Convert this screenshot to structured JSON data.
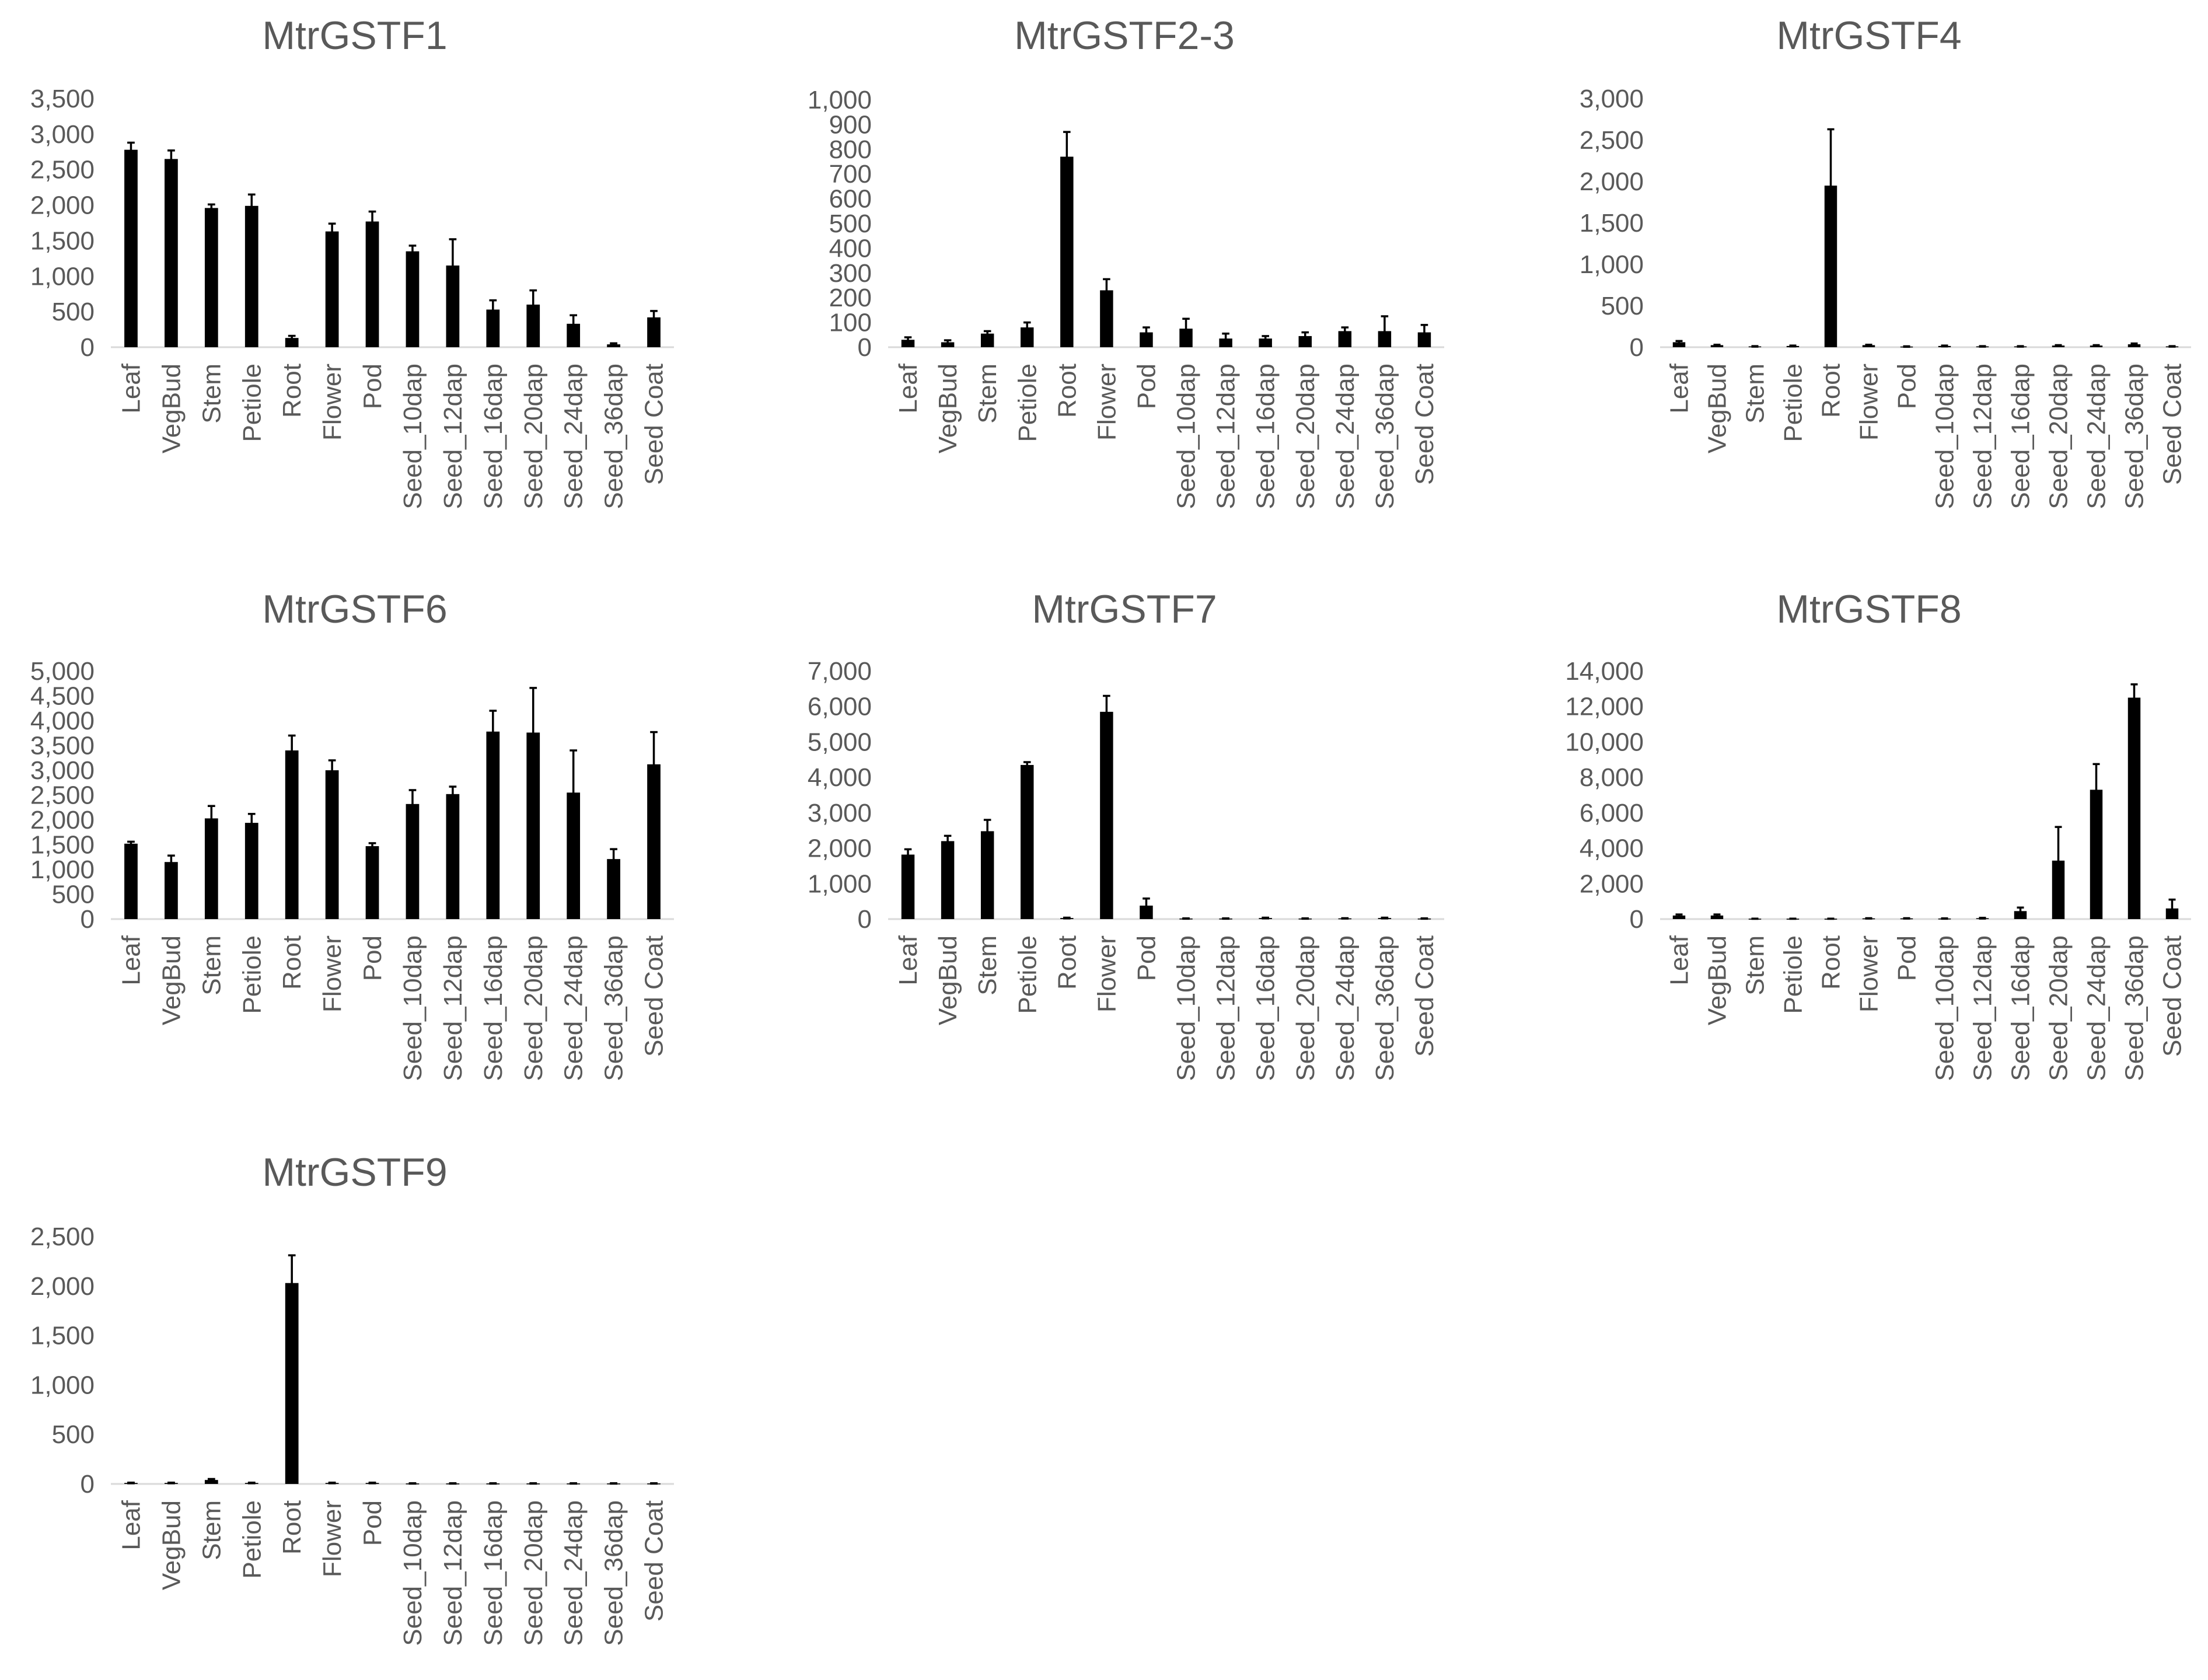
{
  "chart_data": [
    {
      "type": "bar",
      "title": "MtrGSTF1",
      "categories": [
        "Leaf",
        "VegBud",
        "Stem",
        "Petiole",
        "Root",
        "Flower",
        "Pod",
        "Seed_10dap",
        "Seed_12dap",
        "Seed_16dap",
        "Seed_20dap",
        "Seed_24dap",
        "Seed_36dap",
        "Seed Coat"
      ],
      "values": [
        2780,
        2650,
        1960,
        1990,
        130,
        1630,
        1770,
        1350,
        1150,
        530,
        600,
        330,
        40,
        420
      ],
      "errors": [
        100,
        120,
        50,
        160,
        30,
        110,
        140,
        80,
        370,
        130,
        200,
        120,
        15,
        90
      ],
      "ylim": [
        0,
        3500
      ],
      "yticks": [
        "0",
        "500",
        "1,000",
        "1,500",
        "2,000",
        "2,500",
        "3,000",
        "3,500"
      ],
      "xlabel": "",
      "ylabel": ""
    },
    {
      "type": "bar",
      "title": "MtrGSTF2-3",
      "categories": [
        "Leaf",
        "VegBud",
        "Stem",
        "Petiole",
        "Root",
        "Flower",
        "Pod",
        "Seed_10dap",
        "Seed_12dap",
        "Seed_16dap",
        "Seed_20dap",
        "Seed_24dap",
        "Seed_36dap",
        "Seed Coat"
      ],
      "values": [
        30,
        20,
        55,
        80,
        770,
        230,
        60,
        75,
        35,
        35,
        45,
        65,
        65,
        60
      ],
      "errors": [
        10,
        8,
        10,
        20,
        100,
        45,
        20,
        40,
        20,
        10,
        15,
        15,
        60,
        30
      ],
      "ylim": [
        0,
        1000
      ],
      "yticks": [
        "0",
        "100",
        "200",
        "300",
        "400",
        "500",
        "600",
        "700",
        "800",
        "900",
        "1,000"
      ],
      "xlabel": "",
      "ylabel": ""
    },
    {
      "type": "bar",
      "title": "MtrGSTF4",
      "categories": [
        "Leaf",
        "VegBud",
        "Stem",
        "Petiole",
        "Root",
        "Flower",
        "Pod",
        "Seed_10dap",
        "Seed_12dap",
        "Seed_16dap",
        "Seed_20dap",
        "Seed_24dap",
        "Seed_36dap",
        "Seed Coat"
      ],
      "values": [
        60,
        25,
        10,
        15,
        1950,
        25,
        8,
        15,
        10,
        10,
        20,
        20,
        35,
        10
      ],
      "errors": [
        15,
        5,
        3,
        5,
        680,
        5,
        3,
        5,
        3,
        3,
        5,
        5,
        10,
        3
      ],
      "ylim": [
        0,
        3000
      ],
      "yticks": [
        "0",
        "500",
        "1,000",
        "1,500",
        "2,000",
        "2,500",
        "3,000"
      ],
      "xlabel": "",
      "ylabel": ""
    },
    {
      "type": "bar",
      "title": "MtrGSTF6",
      "categories": [
        "Leaf",
        "VegBud",
        "Stem",
        "Petiole",
        "Root",
        "Flower",
        "Pod",
        "Seed_10dap",
        "Seed_12dap",
        "Seed_16dap",
        "Seed_20dap",
        "Seed_24dap",
        "Seed_36dap",
        "Seed Coat"
      ],
      "values": [
        1520,
        1150,
        2030,
        1940,
        3400,
        3000,
        1470,
        2320,
        2520,
        3780,
        3760,
        2550,
        1210,
        3120
      ],
      "errors": [
        40,
        130,
        250,
        180,
        300,
        200,
        60,
        280,
        150,
        420,
        900,
        850,
        200,
        650
      ],
      "ylim": [
        0,
        5000
      ],
      "yticks": [
        "0",
        "500",
        "1,000",
        "1,500",
        "2,000",
        "2,500",
        "3,000",
        "3,500",
        "4,000",
        "4,500",
        "5,000"
      ],
      "xlabel": "",
      "ylabel": ""
    },
    {
      "type": "bar",
      "title": "MtrGSTF7",
      "categories": [
        "Leaf",
        "VegBud",
        "Stem",
        "Petiole",
        "Root",
        "Flower",
        "Pod",
        "Seed_10dap",
        "Seed_12dap",
        "Seed_16dap",
        "Seed_20dap",
        "Seed_24dap",
        "Seed_36dap",
        "Seed Coat"
      ],
      "values": [
        1820,
        2200,
        2480,
        4350,
        30,
        5850,
        380,
        15,
        15,
        30,
        15,
        20,
        30,
        15
      ],
      "errors": [
        150,
        150,
        320,
        80,
        10,
        450,
        200,
        5,
        5,
        10,
        5,
        5,
        10,
        5
      ],
      "ylim": [
        0,
        7000
      ],
      "yticks": [
        "0",
        "1,000",
        "2,000",
        "3,000",
        "4,000",
        "5,000",
        "6,000",
        "7,000"
      ],
      "xlabel": "",
      "ylabel": ""
    },
    {
      "type": "bar",
      "title": "MtrGSTF8",
      "categories": [
        "Leaf",
        "VegBud",
        "Stem",
        "Petiole",
        "Root",
        "Flower",
        "Pod",
        "Seed_10dap",
        "Seed_12dap",
        "Seed_16dap",
        "Seed_20dap",
        "Seed_24dap",
        "Seed_36dap",
        "Seed Coat"
      ],
      "values": [
        200,
        200,
        20,
        20,
        20,
        40,
        40,
        30,
        50,
        450,
        3300,
        7300,
        12500,
        600
      ],
      "errors": [
        60,
        60,
        5,
        5,
        5,
        10,
        10,
        10,
        20,
        200,
        1900,
        1450,
        750,
        500
      ],
      "ylim": [
        0,
        14000
      ],
      "yticks": [
        "0",
        "2,000",
        "4,000",
        "6,000",
        "8,000",
        "10,000",
        "12,000",
        "14,000"
      ],
      "xlabel": "",
      "ylabel": ""
    },
    {
      "type": "bar",
      "title": "MtrGSTF9",
      "categories": [
        "Leaf",
        "VegBud",
        "Stem",
        "Petiole",
        "Root",
        "Flower",
        "Pod",
        "Seed_10dap",
        "Seed_12dap",
        "Seed_16dap",
        "Seed_20dap",
        "Seed_24dap",
        "Seed_36dap",
        "Seed Coat"
      ],
      "values": [
        10,
        10,
        40,
        10,
        2030,
        10,
        10,
        5,
        5,
        5,
        5,
        5,
        5,
        5
      ],
      "errors": [
        3,
        3,
        10,
        3,
        280,
        3,
        3,
        2,
        2,
        2,
        2,
        2,
        2,
        2
      ],
      "ylim": [
        0,
        2500
      ],
      "yticks": [
        "0",
        "500",
        "1,000",
        "1,500",
        "2,000",
        "2,500"
      ],
      "xlabel": "",
      "ylabel": ""
    }
  ]
}
